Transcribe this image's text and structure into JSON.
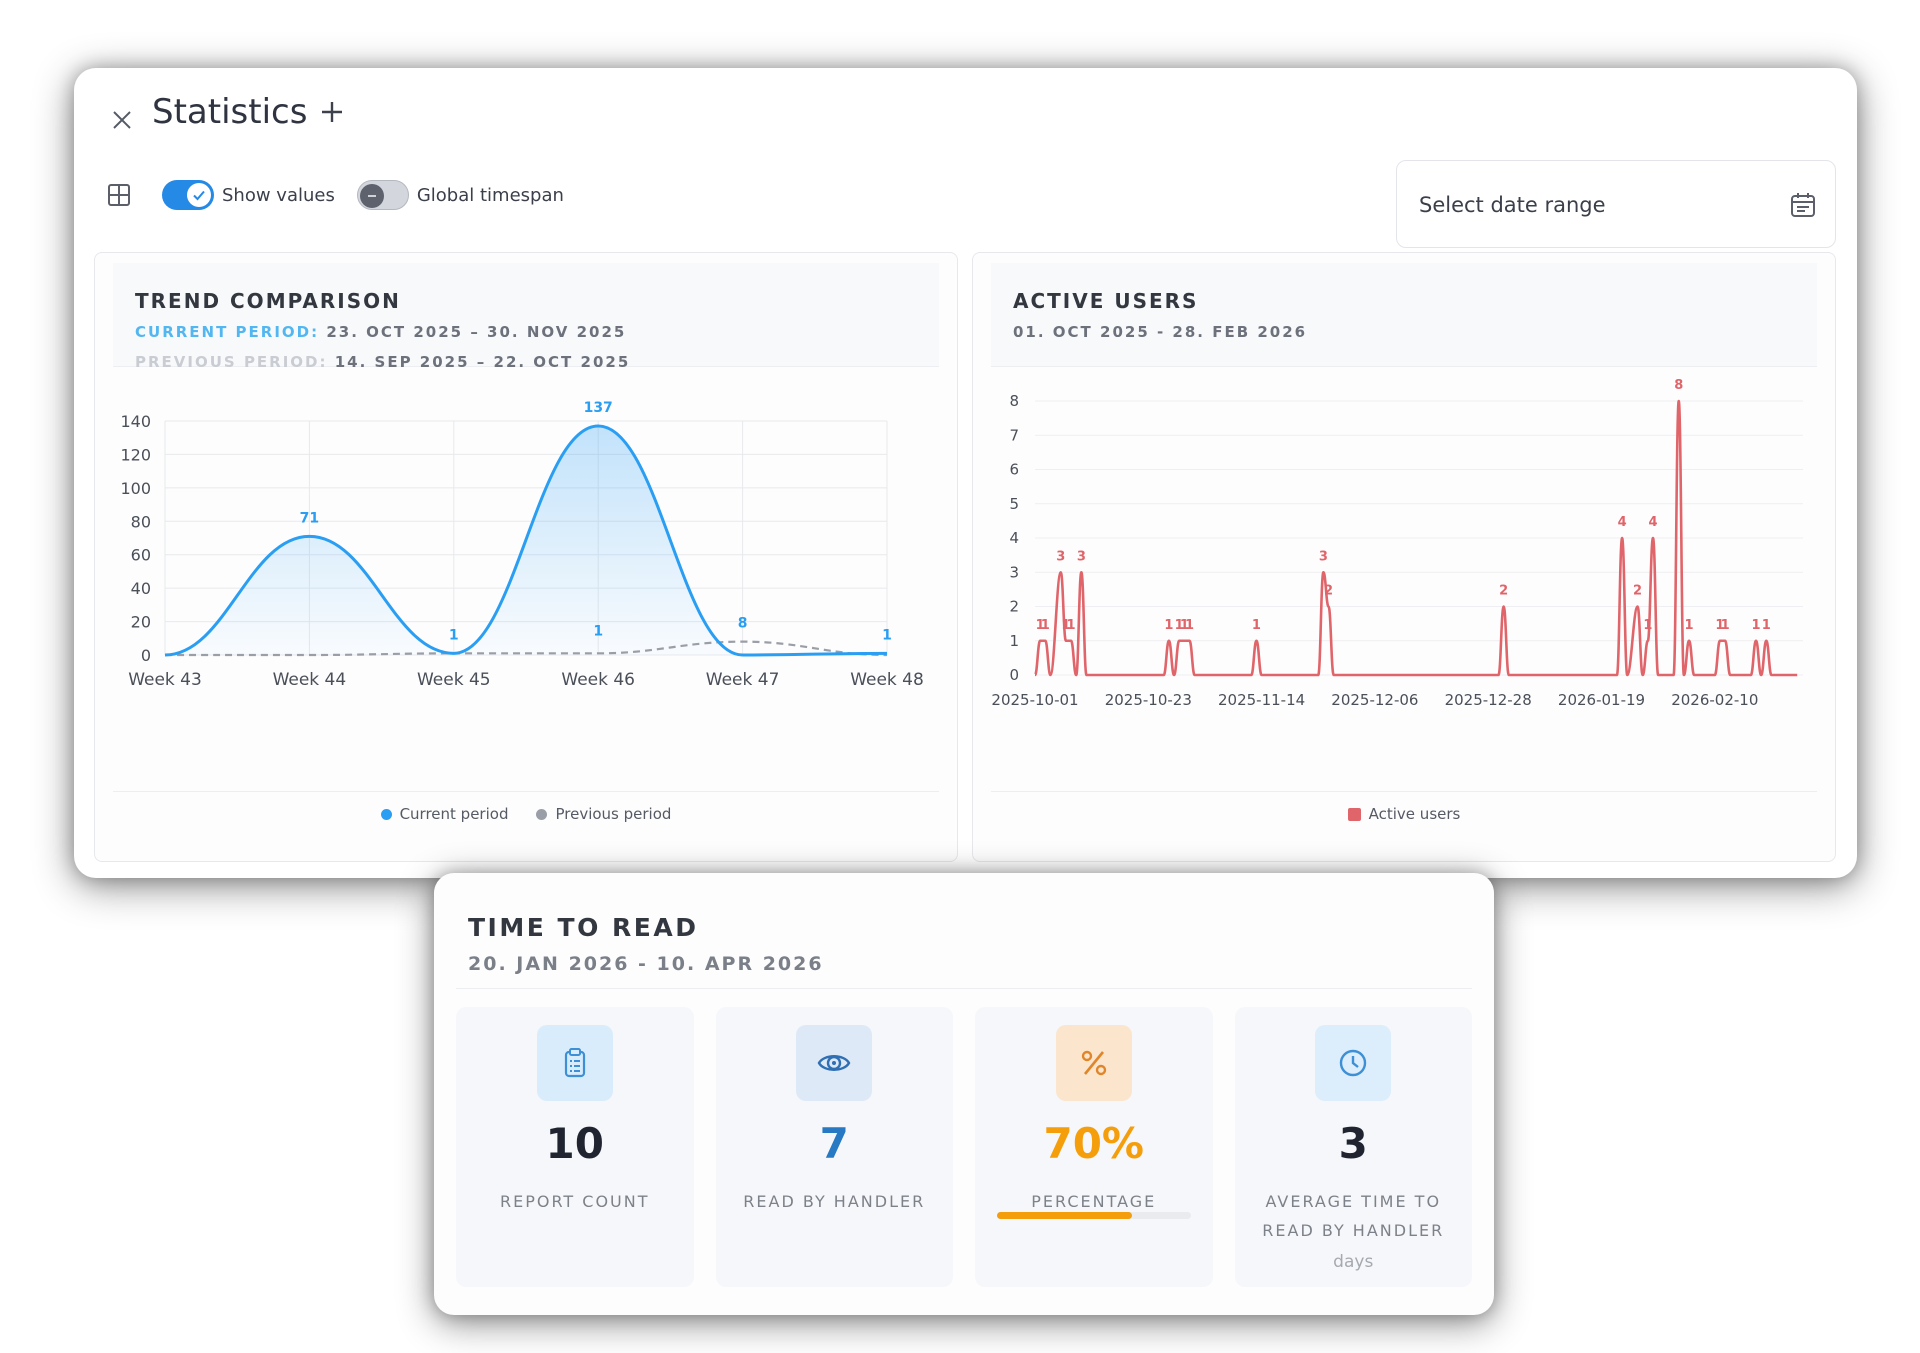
{
  "window": {
    "title": "Statistics",
    "close_icon": "close-icon",
    "add_icon": "plus-icon"
  },
  "toolbar": {
    "layout_icon": "grid-layout-icon",
    "show_values": {
      "label": "Show values",
      "on": true
    },
    "global_timespan": {
      "label": "Global timespan",
      "on": false
    }
  },
  "date_range": {
    "placeholder": "Select date range",
    "icon": "calendar-icon"
  },
  "trend": {
    "title": "TREND COMPARISON",
    "current_key": "CURRENT PERIOD:",
    "current_value": "23. OCT 2025 – 30. NOV 2025",
    "previous_key": "PREVIOUS PERIOD:",
    "previous_value": "14. SEP 2025 – 22. OCT 2025",
    "legend": [
      "Current period",
      "Previous period"
    ]
  },
  "active_users": {
    "title": "ACTIVE USERS",
    "subtitle": "01. OCT 2025 - 28. FEB 2026",
    "legend": [
      "Active users"
    ]
  },
  "chart_data": [
    {
      "type": "line",
      "title": "TREND COMPARISON",
      "categories": [
        "Week 43",
        "Week 44",
        "Week 45",
        "Week 46",
        "Week 47",
        "Week 48"
      ],
      "ylim": [
        0,
        140
      ],
      "yticks": [
        0,
        20,
        40,
        60,
        80,
        100,
        120,
        140
      ],
      "grid": true,
      "legend_position": "bottom",
      "series": [
        {
          "name": "Current period",
          "values": [
            0,
            71,
            1,
            137,
            0,
            1
          ],
          "labels": [
            "",
            "71",
            "1",
            "137",
            "",
            "1"
          ],
          "color": "#2a9ef2"
        },
        {
          "name": "Previous period",
          "values": [
            0,
            0,
            1,
            1,
            8,
            0
          ],
          "labels": [
            "",
            "",
            "",
            "1",
            "8",
            ""
          ],
          "color": "#9a9ea6",
          "dashed": true
        }
      ]
    },
    {
      "type": "line",
      "title": "ACTIVE USERS",
      "x_tick_labels": [
        "2025-10-01",
        "2025-10-23",
        "2025-11-14",
        "2025-12-06",
        "2025-12-28",
        "2026-01-19",
        "2026-02-10"
      ],
      "ylim": [
        0,
        8
      ],
      "yticks": [
        0,
        1,
        2,
        3,
        4,
        5,
        6,
        7,
        8
      ],
      "legend_position": "bottom",
      "series": [
        {
          "name": "Active users",
          "color": "#e0656a",
          "points": [
            {
              "x": "2025-10-01",
              "y": 0
            },
            {
              "x": "2025-10-02",
              "y": 1
            },
            {
              "x": "2025-10-03",
              "y": 1
            },
            {
              "x": "2025-10-04",
              "y": 0
            },
            {
              "x": "2025-10-06",
              "y": 3
            },
            {
              "x": "2025-10-07",
              "y": 1
            },
            {
              "x": "2025-10-08",
              "y": 1
            },
            {
              "x": "2025-10-09",
              "y": 0
            },
            {
              "x": "2025-10-10",
              "y": 3
            },
            {
              "x": "2025-10-11",
              "y": 0
            },
            {
              "x": "2025-10-26",
              "y": 0
            },
            {
              "x": "2025-10-27",
              "y": 1
            },
            {
              "x": "2025-10-28",
              "y": 0
            },
            {
              "x": "2025-10-29",
              "y": 1
            },
            {
              "x": "2025-10-30",
              "y": 1
            },
            {
              "x": "2025-10-31",
              "y": 1
            },
            {
              "x": "2025-11-01",
              "y": 0
            },
            {
              "x": "2025-11-12",
              "y": 0
            },
            {
              "x": "2025-11-13",
              "y": 1
            },
            {
              "x": "2025-11-14",
              "y": 0
            },
            {
              "x": "2025-11-25",
              "y": 0
            },
            {
              "x": "2025-11-26",
              "y": 3
            },
            {
              "x": "2025-11-27",
              "y": 2
            },
            {
              "x": "2025-11-28",
              "y": 0
            },
            {
              "x": "2025-12-30",
              "y": 0
            },
            {
              "x": "2025-12-31",
              "y": 2
            },
            {
              "x": "2026-01-01",
              "y": 0
            },
            {
              "x": "2026-01-22",
              "y": 0
            },
            {
              "x": "2026-01-23",
              "y": 4
            },
            {
              "x": "2026-01-24",
              "y": 0
            },
            {
              "x": "2026-01-26",
              "y": 2
            },
            {
              "x": "2026-01-27",
              "y": 0
            },
            {
              "x": "2026-01-28",
              "y": 1
            },
            {
              "x": "2026-01-29",
              "y": 4
            },
            {
              "x": "2026-01-30",
              "y": 0
            },
            {
              "x": "2026-02-02",
              "y": 0
            },
            {
              "x": "2026-02-03",
              "y": 8
            },
            {
              "x": "2026-02-04",
              "y": 0
            },
            {
              "x": "2026-02-05",
              "y": 1
            },
            {
              "x": "2026-02-06",
              "y": 0
            },
            {
              "x": "2026-02-10",
              "y": 0
            },
            {
              "x": "2026-02-11",
              "y": 1
            },
            {
              "x": "2026-02-12",
              "y": 1
            },
            {
              "x": "2026-02-13",
              "y": 0
            },
            {
              "x": "2026-02-17",
              "y": 0
            },
            {
              "x": "2026-02-18",
              "y": 1
            },
            {
              "x": "2026-02-19",
              "y": 0
            },
            {
              "x": "2026-02-20",
              "y": 1
            },
            {
              "x": "2026-02-21",
              "y": 0
            },
            {
              "x": "2026-02-26",
              "y": 0
            }
          ]
        }
      ]
    }
  ],
  "time_to_read": {
    "title": "TIME TO READ",
    "subtitle": "20. JAN 2026 - 10. APR 2026",
    "stats": [
      {
        "value": "10",
        "label": "REPORT COUNT",
        "icon": "clipboard-icon",
        "color": "#1f2430",
        "icon_bg": "#d9ecfb",
        "icon_color": "#3d8fd6"
      },
      {
        "value": "7",
        "label": "READ BY HANDLER",
        "icon": "eye-icon",
        "color": "#2679c2",
        "icon_bg": "#dde9f7",
        "icon_color": "#2f6fb3"
      },
      {
        "value": "70%",
        "label": "PERCENTAGE",
        "icon": "percent-icon",
        "color": "#f59e0b",
        "icon_bg": "#fbe5cc",
        "icon_color": "#e0862a",
        "progress": 0.7
      },
      {
        "value": "3",
        "label": "AVERAGE TIME TO READ BY HANDLER",
        "unit": "days",
        "icon": "clock-icon",
        "color": "#1f2430",
        "icon_bg": "#dcedfb",
        "icon_color": "#3d8fd6"
      }
    ]
  }
}
